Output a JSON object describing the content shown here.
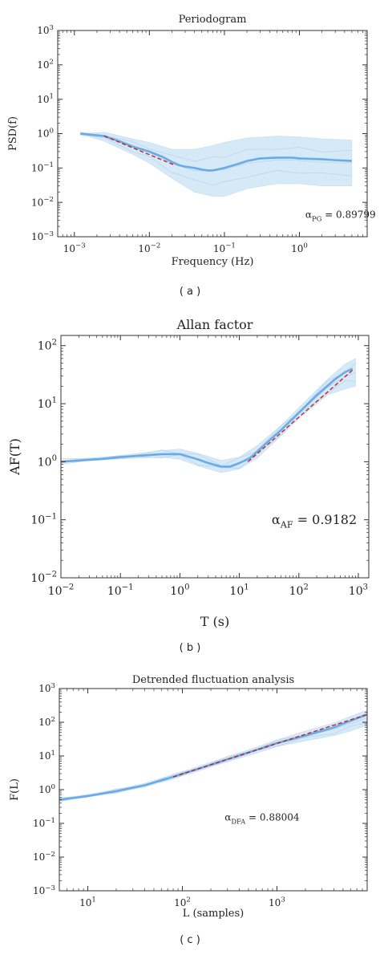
{
  "chart_data": [
    {
      "type": "line",
      "title": "Periodogram",
      "xlabel": "Frequency (Hz)",
      "ylabel": "PSD(f)",
      "x_scale": "log",
      "y_scale": "log",
      "xlim": [
        0.0006,
        8
      ],
      "ylim": [
        0.001,
        1000
      ],
      "x_ticks": [
        {
          "value": 0.001,
          "base": "10",
          "exp": "−3"
        },
        {
          "value": 0.01,
          "base": "10",
          "exp": "−2"
        },
        {
          "value": 0.1,
          "base": "10",
          "exp": "−1"
        },
        {
          "value": 1,
          "base": "10",
          "exp": "0"
        }
      ],
      "y_ticks": [
        {
          "value": 0.001,
          "base": "10",
          "exp": "−3"
        },
        {
          "value": 0.01,
          "base": "10",
          "exp": "−2"
        },
        {
          "value": 0.1,
          "base": "10",
          "exp": "−1"
        },
        {
          "value": 1,
          "base": "10",
          "exp": "0"
        },
        {
          "value": 10,
          "base": "10",
          "exp": "1"
        },
        {
          "value": 100,
          "base": "10",
          "exp": "2"
        },
        {
          "value": 1000,
          "base": "10",
          "exp": "3"
        }
      ],
      "annotation": {
        "symbol": "α",
        "sub": "PG",
        "text": " = 0.89799",
        "x": 1.2,
        "y": 0.0035
      },
      "mean_curve": {
        "x": [
          0.0012,
          0.0025,
          0.004,
          0.006,
          0.01,
          0.015,
          0.02,
          0.025,
          0.03,
          0.04,
          0.05,
          0.06,
          0.07,
          0.08,
          0.1,
          0.15,
          0.2,
          0.3,
          0.5,
          0.8,
          1,
          2,
          3,
          5
        ],
        "y": [
          1.0,
          0.85,
          0.6,
          0.42,
          0.3,
          0.21,
          0.15,
          0.12,
          0.11,
          0.1,
          0.09,
          0.085,
          0.085,
          0.09,
          0.1,
          0.13,
          0.16,
          0.19,
          0.2,
          0.2,
          0.19,
          0.18,
          0.17,
          0.16
        ]
      },
      "band": {
        "x": [
          0.0012,
          0.0025,
          0.006,
          0.01,
          0.02,
          0.04,
          0.07,
          0.1,
          0.2,
          0.5,
          1,
          2,
          5
        ],
        "upper": [
          1.0,
          1.1,
          0.7,
          0.55,
          0.35,
          0.35,
          0.45,
          0.55,
          0.75,
          0.85,
          0.8,
          0.7,
          0.65
        ],
        "lower": [
          1.0,
          0.6,
          0.25,
          0.14,
          0.05,
          0.02,
          0.015,
          0.015,
          0.025,
          0.035,
          0.035,
          0.03,
          0.03
        ]
      },
      "fit_line": {
        "x": [
          0.0025,
          0.022
        ],
        "y": [
          0.85,
          0.12
        ]
      }
    },
    {
      "type": "line",
      "title": "Allan factor",
      "xlabel": "T (s)",
      "ylabel": "AF(T)",
      "x_scale": "log",
      "y_scale": "log",
      "xlim": [
        0.01,
        1500
      ],
      "ylim": [
        0.01,
        150
      ],
      "x_ticks": [
        {
          "value": 0.01,
          "base": "10",
          "exp": "−2"
        },
        {
          "value": 0.1,
          "base": "10",
          "exp": "−1"
        },
        {
          "value": 1,
          "base": "10",
          "exp": "0"
        },
        {
          "value": 10,
          "base": "10",
          "exp": "1"
        },
        {
          "value": 100,
          "base": "10",
          "exp": "2"
        },
        {
          "value": 1000,
          "base": "10",
          "exp": "3"
        }
      ],
      "y_ticks": [
        {
          "value": 0.01,
          "base": "10",
          "exp": "−2"
        },
        {
          "value": 0.1,
          "base": "10",
          "exp": "−1"
        },
        {
          "value": 1,
          "base": "10",
          "exp": "0"
        },
        {
          "value": 10,
          "base": "10",
          "exp": "1"
        },
        {
          "value": 100,
          "base": "10",
          "exp": "2"
        }
      ],
      "annotation": {
        "symbol": "α",
        "sub": "AF",
        "text": " = 0.9182",
        "x": 35,
        "y": 0.085
      },
      "mean_curve": {
        "x": [
          0.01,
          0.02,
          0.05,
          0.1,
          0.2,
          0.5,
          1,
          2,
          3,
          5,
          7,
          10,
          15,
          20,
          30,
          50,
          100,
          200,
          400,
          600,
          800
        ],
        "y": [
          1.0,
          1.05,
          1.12,
          1.2,
          1.27,
          1.35,
          1.35,
          1.1,
          0.95,
          0.82,
          0.82,
          0.95,
          1.15,
          1.5,
          2.2,
          3.5,
          7.0,
          14,
          26,
          35,
          40
        ]
      },
      "band": {
        "x": [
          0.01,
          0.1,
          0.5,
          1,
          2,
          5,
          10,
          20,
          50,
          100,
          300,
          600,
          900
        ],
        "upper": [
          1.05,
          1.28,
          1.55,
          1.65,
          1.4,
          1.05,
          1.2,
          1.9,
          4.2,
          8.5,
          26,
          48,
          60
        ],
        "lower": [
          0.97,
          1.12,
          1.2,
          1.1,
          0.85,
          0.65,
          0.75,
          1.15,
          2.8,
          5.5,
          14,
          18,
          20
        ]
      },
      "fit_line": {
        "x": [
          14,
          850
        ],
        "y": [
          1.0,
          40
        ]
      }
    },
    {
      "type": "line",
      "title": "Detrended fluctuation analysis",
      "xlabel": "L (samples)",
      "ylabel": "F(L)",
      "x_scale": "log",
      "y_scale": "log",
      "xlim": [
        5,
        9000
      ],
      "ylim": [
        0.001,
        1000
      ],
      "x_ticks": [
        {
          "value": 10,
          "base": "10",
          "exp": "1"
        },
        {
          "value": 100,
          "base": "10",
          "exp": "2"
        },
        {
          "value": 1000,
          "base": "10",
          "exp": "3"
        }
      ],
      "y_ticks": [
        {
          "value": 0.001,
          "base": "10",
          "exp": "−3"
        },
        {
          "value": 0.01,
          "base": "10",
          "exp": "−2"
        },
        {
          "value": 0.1,
          "base": "10",
          "exp": "−1"
        },
        {
          "value": 1,
          "base": "10",
          "exp": "0"
        },
        {
          "value": 10,
          "base": "10",
          "exp": "1"
        },
        {
          "value": 100,
          "base": "10",
          "exp": "2"
        },
        {
          "value": 1000,
          "base": "10",
          "exp": "3"
        }
      ],
      "annotation": {
        "symbol": "α",
        "sub": "DFA",
        "text": " = 0.88004",
        "x": 280,
        "y": 0.12
      },
      "mean_curve": {
        "x": [
          5,
          10,
          20,
          40,
          80,
          150,
          300,
          600,
          1000,
          2000,
          4000,
          6000,
          9000
        ],
        "y": [
          0.5,
          0.65,
          0.9,
          1.35,
          2.4,
          4.2,
          8.0,
          15,
          24,
          40,
          70,
          110,
          170
        ]
      },
      "band": {
        "x": [
          5,
          10,
          20,
          40,
          80,
          150,
          300,
          600,
          1000,
          2000,
          4000,
          6000,
          9000
        ],
        "upper": [
          0.55,
          0.72,
          1.0,
          1.55,
          2.8,
          5.0,
          9.5,
          18,
          30,
          55,
          95,
          150,
          230
        ],
        "lower": [
          0.46,
          0.6,
          0.82,
          1.2,
          2.1,
          3.6,
          6.8,
          12,
          19,
          28,
          40,
          55,
          80
        ]
      },
      "fit_line": {
        "x": [
          80,
          9000
        ],
        "y": [
          2.4,
          170
        ]
      }
    }
  ],
  "captions": [
    "( a )",
    "( b )",
    "( c )"
  ]
}
